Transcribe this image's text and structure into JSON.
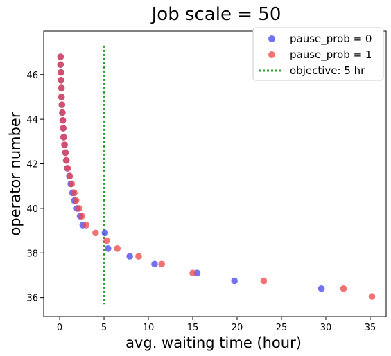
{
  "chart_data": {
    "type": "scatter",
    "title": "Job scale = 50",
    "xlabel": "avg. waiting time (hour)",
    "ylabel": "operator number",
    "xlim": [
      -1.8,
      36.8
    ],
    "ylim": [
      35.15,
      47.95
    ],
    "xticks": [
      0,
      5,
      10,
      15,
      20,
      25,
      30,
      35
    ],
    "yticks": [
      36,
      38,
      40,
      42,
      44,
      46
    ],
    "grid": false,
    "legend_position": "top-right",
    "series": [
      {
        "name": "pause_prob = 0",
        "kind": "scatter",
        "color": "#4444ee",
        "points": [
          [
            0.1,
            46.8
          ],
          [
            0.1,
            46.45
          ],
          [
            0.15,
            46.1
          ],
          [
            0.15,
            45.75
          ],
          [
            0.2,
            45.4
          ],
          [
            0.2,
            45.0
          ],
          [
            0.25,
            44.65
          ],
          [
            0.3,
            44.3
          ],
          [
            0.35,
            43.95
          ],
          [
            0.4,
            43.6
          ],
          [
            0.45,
            43.2
          ],
          [
            0.55,
            42.85
          ],
          [
            0.65,
            42.5
          ],
          [
            0.75,
            42.15
          ],
          [
            0.85,
            41.8
          ],
          [
            1.1,
            41.45
          ],
          [
            1.25,
            41.1
          ],
          [
            1.45,
            40.7
          ],
          [
            1.65,
            40.35
          ],
          [
            1.95,
            40.0
          ],
          [
            2.3,
            39.65
          ],
          [
            2.6,
            39.25
          ],
          [
            5.1,
            38.9
          ],
          [
            5.45,
            38.2
          ],
          [
            7.9,
            37.85
          ],
          [
            10.7,
            37.5
          ],
          [
            15.5,
            37.1
          ],
          [
            19.7,
            36.75
          ],
          [
            29.5,
            36.4
          ]
        ]
      },
      {
        "name": "pause_prob = 1",
        "kind": "scatter",
        "color": "#ee4444",
        "points": [
          [
            0.1,
            46.8
          ],
          [
            0.1,
            46.45
          ],
          [
            0.15,
            46.1
          ],
          [
            0.15,
            45.75
          ],
          [
            0.2,
            45.4
          ],
          [
            0.2,
            45.0
          ],
          [
            0.25,
            44.65
          ],
          [
            0.3,
            44.3
          ],
          [
            0.35,
            43.95
          ],
          [
            0.4,
            43.6
          ],
          [
            0.45,
            43.2
          ],
          [
            0.55,
            42.85
          ],
          [
            0.65,
            42.5
          ],
          [
            0.75,
            42.15
          ],
          [
            0.9,
            41.8
          ],
          [
            1.15,
            41.45
          ],
          [
            1.35,
            41.1
          ],
          [
            1.65,
            40.7
          ],
          [
            1.85,
            40.35
          ],
          [
            2.2,
            40.0
          ],
          [
            2.5,
            39.65
          ],
          [
            3.0,
            39.25
          ],
          [
            4.05,
            38.9
          ],
          [
            5.3,
            38.55
          ],
          [
            6.5,
            38.2
          ],
          [
            8.9,
            37.85
          ],
          [
            11.5,
            37.5
          ],
          [
            15.0,
            37.1
          ],
          [
            23.0,
            36.75
          ],
          [
            32.0,
            36.4
          ],
          [
            35.2,
            36.05
          ]
        ]
      },
      {
        "name": "objective: 5 hr",
        "kind": "vline",
        "color": "#2ca02c",
        "x": 5,
        "y_range": [
          35.7,
          47.3
        ]
      }
    ]
  }
}
